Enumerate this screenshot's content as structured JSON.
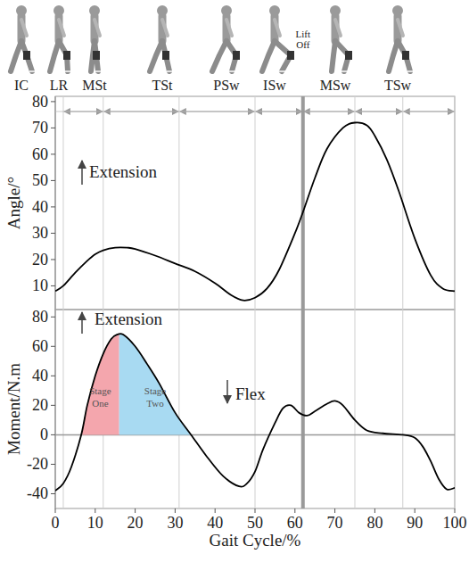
{
  "chart_data": [
    {
      "type": "line",
      "y_label": "Angle/°",
      "x": [
        0,
        2,
        5,
        8,
        10,
        12,
        15,
        18,
        20,
        25,
        30,
        35,
        40,
        44,
        47,
        50,
        53,
        56,
        60,
        62,
        65,
        68,
        72,
        75,
        78,
        80,
        83,
        86,
        90,
        94,
        97,
        100
      ],
      "values": [
        8,
        10,
        15,
        19.5,
        22,
        23.5,
        24.5,
        24.5,
        24,
        21.5,
        18.5,
        15.5,
        11,
        6.5,
        4.5,
        5.5,
        9,
        16,
        30,
        38,
        51,
        62,
        70,
        72,
        71,
        67,
        58,
        46,
        28,
        14,
        9,
        8
      ],
      "color": "#000000",
      "xlim": [
        0,
        100
      ],
      "ylim": [
        1,
        82
      ],
      "yticks": [
        10,
        20,
        30,
        40,
        50,
        60,
        70,
        80
      ],
      "tick_labels": "y",
      "grid": false,
      "annotations": [
        "Extension"
      ]
    },
    {
      "type": "line",
      "y_label": "Moment/N.m",
      "x_label": "Gait Cycle/%",
      "x": [
        0,
        2,
        4,
        6.5,
        8,
        10,
        12,
        14,
        15.5,
        17,
        20,
        23,
        26,
        30,
        34,
        38,
        42,
        46,
        48,
        50,
        52,
        55,
        57,
        59,
        61,
        63,
        65,
        68,
        70,
        72,
        75,
        78,
        82,
        87,
        90,
        92,
        94,
        96,
        98,
        100
      ],
      "values": [
        -38,
        -33,
        -22,
        0,
        20,
        40,
        55,
        65,
        68,
        68,
        60,
        48,
        35,
        15,
        0,
        -15,
        -28,
        -35,
        -33,
        -25,
        -10,
        8,
        18,
        20,
        15,
        13,
        16,
        21,
        23,
        20,
        10,
        3,
        1,
        0,
        -2,
        -8,
        -18,
        -30,
        -37,
        -36
      ],
      "color": "#000000",
      "xlim": [
        0,
        100
      ],
      "xticks": [
        0,
        10,
        20,
        30,
        40,
        50,
        60,
        70,
        80,
        90,
        100
      ],
      "ylim": [
        -50,
        85
      ],
      "yticks": [
        -40,
        -20,
        0,
        20,
        40,
        60,
        80
      ],
      "grid": false,
      "annotations": [
        "Extension",
        "Flex"
      ],
      "stages": [
        {
          "label": "Stage One",
          "start": 6.5,
          "end": 16,
          "color": "#f4a6ad"
        },
        {
          "label": "Stage Two",
          "start": 16,
          "end": 34,
          "color": "#a8daf2"
        }
      ]
    }
  ],
  "gait_phases": {
    "labels": [
      "IC",
      "LR",
      "MSt",
      "TSt",
      "PSw",
      "ISw",
      "MSw",
      "TSw"
    ],
    "boundaries": [
      0,
      2,
      12,
      31,
      50,
      62,
      75,
      87,
      100
    ],
    "lift_off": 62,
    "lift_off_label": "Lift Off"
  }
}
